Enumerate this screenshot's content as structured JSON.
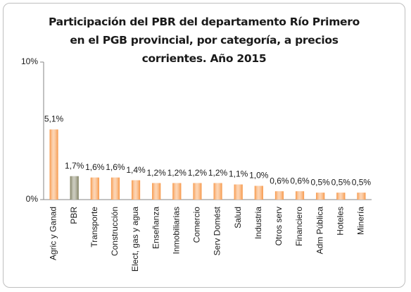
{
  "chart_data": {
    "type": "bar",
    "title": "Participación del PBR del departamento Río Primero en el PGB provincial, por categoría, a precios corrientes. Año 2015",
    "categories": [
      "Agric y Ganad",
      "PBR",
      "Transporte",
      "Construcción",
      "Elect, gas y agua",
      "Enseñanza",
      "Inmobiliarias",
      "Comercio",
      "Serv Domést",
      "Salud",
      "Industria",
      "Otros serv",
      "Financiero",
      "Adm Pública",
      "Hoteles",
      "Minería"
    ],
    "values": [
      5.1,
      1.7,
      1.6,
      1.6,
      1.4,
      1.2,
      1.2,
      1.2,
      1.2,
      1.1,
      1.0,
      0.6,
      0.6,
      0.5,
      0.5,
      0.5
    ],
    "value_labels": [
      "5,1%",
      "1,7%",
      "1,6%",
      "1,6%",
      "1,4%",
      "1,2%",
      "1,2%",
      "1,2%",
      "1,2%",
      "1,1%",
      "1,0%",
      "0,6%",
      "0,6%",
      "0,5%",
      "0,5%",
      "0,5%"
    ],
    "colors": [
      "#f79646",
      "#7f7f5f",
      "#f79646",
      "#f79646",
      "#f79646",
      "#f79646",
      "#f79646",
      "#f79646",
      "#f79646",
      "#f79646",
      "#f79646",
      "#f79646",
      "#f79646",
      "#f79646",
      "#f79646",
      "#f79646"
    ],
    "ylim": [
      0,
      10
    ],
    "yticks": [
      {
        "value": 0,
        "label": "0%"
      },
      {
        "value": 10,
        "label": "10%"
      }
    ]
  }
}
